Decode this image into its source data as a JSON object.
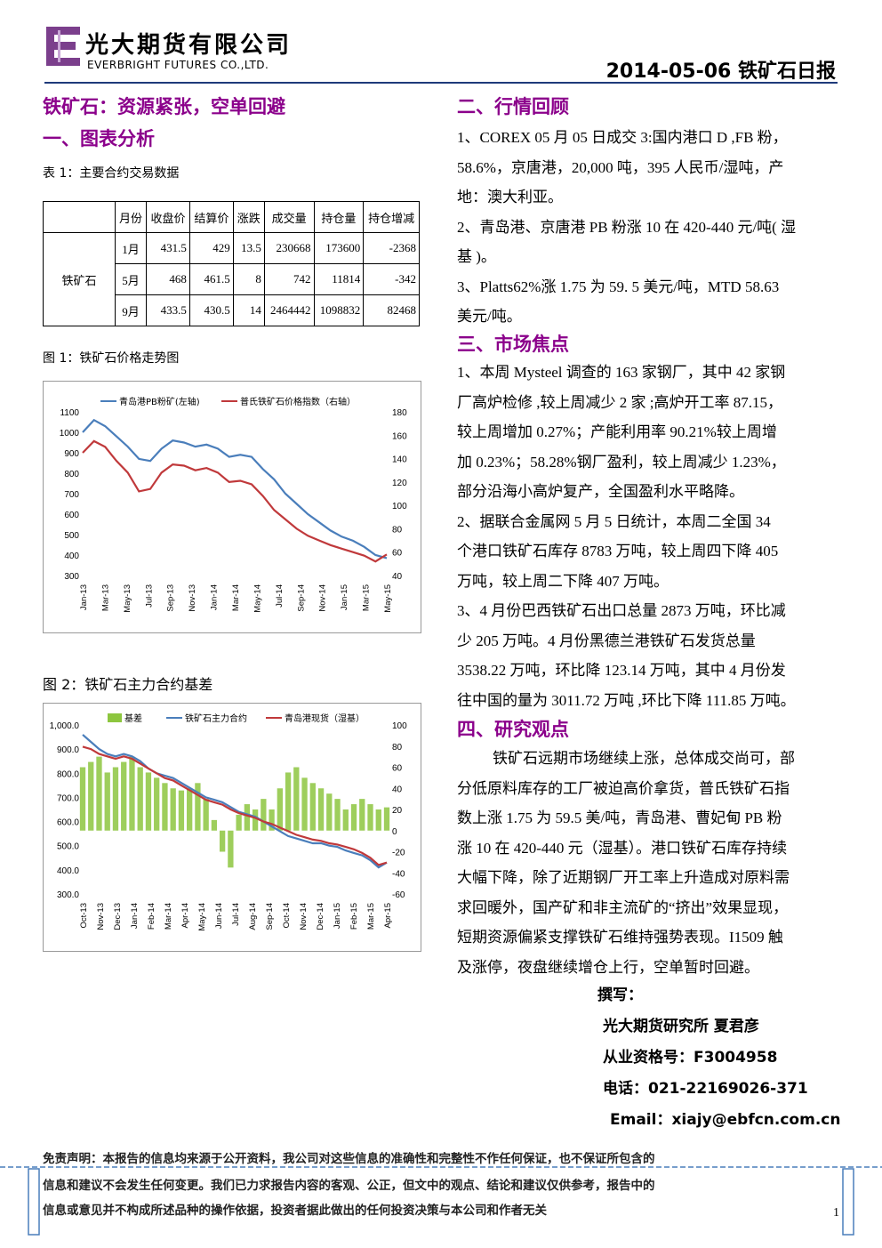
{
  "header": {
    "company_cn": "光大期货有限公司",
    "company_en": "EVERBRIGHT FUTURES CO.,LTD.",
    "report_title": "2014-05-06 铁矿石日报"
  },
  "headline": "铁矿石：资源紧张，空单回避",
  "section1": {
    "title": "一、图表分析",
    "table_caption": "表 1：主要合约交易数据",
    "table": {
      "headers": [
        "月份",
        "收盘价",
        "结算价",
        "涨跌",
        "成交量",
        "持仓量",
        "持仓增减"
      ],
      "product": "铁矿石",
      "rows": [
        [
          "1月",
          "431.5",
          "429",
          "13.5",
          "230668",
          "173600",
          "-2368"
        ],
        [
          "5月",
          "468",
          "461.5",
          "8",
          "742",
          "11814",
          "-342"
        ],
        [
          "9月",
          "433.5",
          "430.5",
          "14",
          "2464442",
          "1098832",
          "82468"
        ]
      ]
    },
    "fig1_caption": "图 1：铁矿石价格走势图",
    "fig2_caption": "图 2：铁矿石主力合约基差"
  },
  "chart_data": [
    {
      "type": "line",
      "legend": [
        "青岛港PB粉矿(左轴)",
        "普氏铁矿石价格指数（右轴）"
      ],
      "x_ticks": [
        "Jan-13",
        "Mar-13",
        "May-13",
        "Jul-13",
        "Sep-13",
        "Nov-13",
        "Jan-14",
        "Mar-14",
        "May-14",
        "Jul-14",
        "Sep-14",
        "Nov-14",
        "Jan-15",
        "Mar-15",
        "May-15"
      ],
      "y_left_ticks": [
        "1100",
        "1000",
        "900",
        "800",
        "700",
        "600",
        "500",
        "400",
        "300"
      ],
      "y_right_ticks": [
        "180",
        "160",
        "140",
        "120",
        "100",
        "80",
        "60",
        "40"
      ],
      "ylim_left": [
        300,
        1100
      ],
      "ylim_right": [
        40,
        180
      ],
      "series": [
        {
          "name": "青岛港PB粉矿(左轴)",
          "axis": "left",
          "color": "#4a7ebb",
          "values": [
            1000,
            1060,
            1030,
            980,
            930,
            870,
            860,
            920,
            960,
            950,
            930,
            940,
            920,
            880,
            890,
            880,
            820,
            770,
            700,
            650,
            600,
            560,
            520,
            490,
            470,
            440,
            400,
            385
          ]
        },
        {
          "name": "普氏铁矿石价格指数（右轴）",
          "axis": "right",
          "color": "#c0393b",
          "values": [
            145,
            155,
            150,
            138,
            128,
            112,
            114,
            128,
            135,
            134,
            130,
            132,
            128,
            120,
            121,
            118,
            108,
            96,
            88,
            80,
            74,
            70,
            66,
            63,
            60,
            57,
            52,
            58
          ]
        }
      ]
    },
    {
      "type": "bar",
      "legend": [
        "基差",
        "铁矿石主力合约",
        "青岛港现货（湿基）"
      ],
      "x_ticks": [
        "Oct-13",
        "Nov-13",
        "Dec-13",
        "Jan-14",
        "Feb-14",
        "Mar-14",
        "Apr-14",
        "May-14",
        "Jun-14",
        "Jul-14",
        "Aug-14",
        "Sep-14",
        "Oct-14",
        "Nov-14",
        "Dec-14",
        "Jan-15",
        "Feb-15",
        "Mar-15",
        "Apr-15"
      ],
      "y_left_ticks": [
        "1,000.0",
        "900.0",
        "800.0",
        "700.0",
        "600.0",
        "500.0",
        "400.0",
        "300.0"
      ],
      "y_right_ticks": [
        "100",
        "80",
        "60",
        "40",
        "20",
        "0",
        "-20",
        "-40",
        "-60"
      ],
      "ylim_left": [
        300,
        1000
      ],
      "ylim_right": [
        -60,
        100
      ],
      "series": [
        {
          "name": "基差",
          "axis": "right",
          "color": "#8dc63f",
          "values": [
            60,
            65,
            70,
            55,
            60,
            65,
            70,
            60,
            55,
            50,
            45,
            40,
            38,
            40,
            45,
            30,
            10,
            -20,
            -35,
            15,
            25,
            20,
            30,
            20,
            40,
            55,
            60,
            50,
            45,
            40,
            35,
            30,
            20,
            25,
            30,
            25,
            20,
            22
          ]
        },
        {
          "name": "铁矿石主力合约",
          "axis": "left",
          "color": "#4a7ebb",
          "values": [
            960,
            930,
            900,
            880,
            870,
            880,
            870,
            850,
            820,
            800,
            790,
            780,
            760,
            740,
            720,
            700,
            690,
            680,
            660,
            640,
            630,
            620,
            600,
            580,
            560,
            540,
            530,
            520,
            510,
            510,
            500,
            495,
            480,
            470,
            460,
            440,
            410,
            430
          ]
        },
        {
          "name": "青岛港现货（湿基）",
          "axis": "left",
          "color": "#c0393b",
          "values": [
            910,
            900,
            880,
            870,
            860,
            870,
            860,
            840,
            820,
            800,
            780,
            770,
            750,
            730,
            710,
            690,
            680,
            670,
            650,
            635,
            625,
            615,
            600,
            590,
            575,
            560,
            545,
            535,
            525,
            520,
            510,
            505,
            495,
            485,
            470,
            450,
            420,
            430
          ]
        }
      ]
    }
  ],
  "section2": {
    "title": "二、行情回顾",
    "paragraphs": [
      [
        "1、COREX 05 月 05 日成交 3:国内港口 D ,FB 粉，",
        "58.6%，京唐港，20,000 吨，395 人民币/湿吨，产",
        "地：澳大利亚。"
      ],
      [
        "2、青岛港、京唐港 PB 粉涨 10 在 420-440 元/吨( 湿",
        "基 )。"
      ],
      [
        "3、Platts62%涨 1.75 为 59. 5 美元/吨，MTD 58.63",
        "美元/吨。"
      ]
    ]
  },
  "section3": {
    "title": "三、市场焦点",
    "paragraphs": [
      [
        "1、本周 Mysteel 调查的 163 家钢厂，其中 42 家钢",
        "厂高炉检修 ,较上周减少 2 家 ;高炉开工率 87.15，",
        "较上周增加 0.27%；产能利用率 90.21%较上周增",
        "加 0.23%；58.28%钢厂盈利，较上周减少 1.23%，",
        "部分沿海小高炉复产，全国盈利水平略降。"
      ],
      [
        "2、据联合金属网 5 月 5 日统计，本周二全国 34",
        "个港口铁矿石库存 8783 万吨，较上周四下降 405",
        "万吨，较上周二下降 407 万吨。"
      ],
      [
        "3、4 月份巴西铁矿石出口总量 2873 万吨，环比减",
        "少 205 万吨。4 月份黑德兰港铁矿石发货总量",
        "3538.22 万吨，环比降 123.14 万吨，其中 4 月份发",
        "往中国的量为 3011.72 万吨 ,环比下降 111.85 万吨。"
      ]
    ]
  },
  "section4": {
    "title": "四、研究观点",
    "lines": [
      "铁矿石远期市场继续上涨，总体成交尚可，部",
      "分低原料库存的工厂被迫高价拿货，普氏铁矿石指",
      "数上涨 1.75 为 59.5 美/吨，青岛港、曹妃甸 PB 粉",
      "涨 10 在 420-440 元（湿基）。港口铁矿石库存持续",
      "大幅下降，除了近期钢厂开工率上升造成对原料需",
      "求回暖外，国产矿和非主流矿的“挤出”效果显现，",
      "短期资源偏紧支撑铁矿石维持强势表现。I1509 触",
      "及涨停，夜盘继续增仓上行，空单暂时回避。"
    ]
  },
  "author": {
    "label": "撰写：",
    "name": "光大期货研究所 夏君彦",
    "license": "从业资格号：F3004958",
    "phone": "电话：021-22169026-371",
    "email": "Email：xiajy@ebfcn.com.cn"
  },
  "disclaimer": [
    "免责声明：本报告的信息均来源于公开资料，我公司对这些信息的准确性和完整性不作任何保证，也不保证所包含的",
    "信息和建议不会发生任何变更。我们已力求报告内容的客观、公正，但文中的观点、结论和建议仅供参考，报告中的",
    "信息或意见并不构成所述品种的操作依据，投资者据此做出的任何投资决策与本公司和作者无关"
  ],
  "page_number": "1",
  "colors": {
    "section_title": "#8b008b",
    "brand_blue": "#1f3a7a",
    "logo_purple": "#7b3f8c"
  }
}
